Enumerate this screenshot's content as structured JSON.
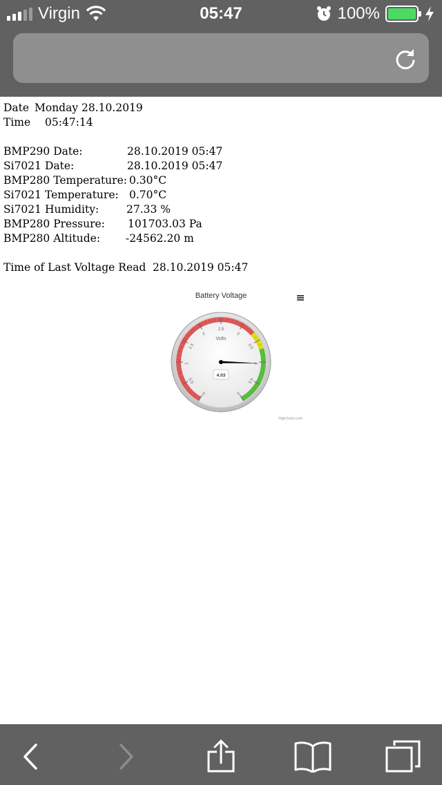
{
  "status": {
    "carrier": "Virgin",
    "time": "05:47",
    "battery": "100%"
  },
  "browser": {
    "url": "",
    "toolbar": [
      "back-icon",
      "forward-icon",
      "share-icon",
      "bookmarks-icon",
      "tabs-icon"
    ]
  },
  "info": {
    "date_label": "Date",
    "date_value": "Monday 28.10.2019",
    "time_label": "Time",
    "time_value": "05:47:14"
  },
  "readings": [
    {
      "label": "BMP290 Date:",
      "value": "28.10.2019 05:47"
    },
    {
      "label": "Si7021 Date:",
      "value": "28.10.2019 05:47"
    },
    {
      "label": "BMP280 Temperature:",
      "value": "0.30°C"
    },
    {
      "label": "Si7021 Temperature:",
      "value": "0.70°C"
    },
    {
      "label": "Si7021 Humidity:",
      "value": "27.33 %"
    },
    {
      "label": "BMP280 Pressure:",
      "value": "101703.03 Pa"
    },
    {
      "label": "BMP280 Altitude:",
      "value": "-24562.20 m"
    }
  ],
  "voltage": {
    "label": "Time of Last Voltage Read",
    "value": "28.10.2019 05:47"
  },
  "chart_data": {
    "type": "gauge",
    "title": "Battery Voltage",
    "unit_label": "Volts",
    "value": 4.03,
    "value_label": "4.03",
    "min": 0,
    "max": 5,
    "ticks": [
      "0",
      "0.5",
      "1",
      "1.5",
      "2",
      "2.5",
      "3",
      "3.5",
      "4",
      "4.5",
      "5"
    ],
    "bands": [
      {
        "from": 0,
        "to": 3.3,
        "color": "#DF5353"
      },
      {
        "from": 3.3,
        "to": 3.7,
        "color": "#DDDF0D"
      },
      {
        "from": 3.7,
        "to": 5,
        "color": "#55BF3B"
      }
    ],
    "credits": "Highcharts.com"
  }
}
